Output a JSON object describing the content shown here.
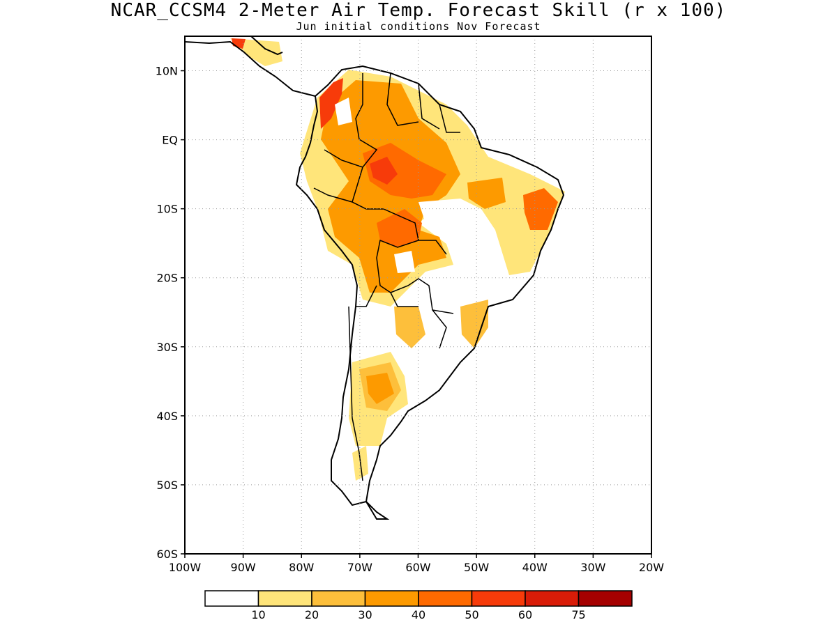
{
  "title": "NCAR_CCSM4 2-Meter Air Temp. Forecast Skill (r x 100)",
  "subtitle": "Jun initial conditions  Nov Forecast",
  "map": {
    "lon_range": [
      -100,
      -20
    ],
    "lat_range": [
      -60,
      15
    ],
    "lat_labels": [
      "10N",
      "EQ",
      "10S",
      "20S",
      "30S",
      "40S",
      "50S",
      "60S"
    ],
    "lat_values": [
      10,
      0,
      -10,
      -20,
      -30,
      -40,
      -50,
      -60
    ],
    "lon_labels": [
      "100W",
      "90W",
      "80W",
      "70W",
      "60W",
      "50W",
      "40W",
      "30W",
      "20W"
    ],
    "lon_values": [
      -100,
      -90,
      -80,
      -70,
      -60,
      -50,
      -40,
      -30,
      -20
    ],
    "gridlines": "dotted"
  },
  "legend": {
    "colors": [
      "#ffffff",
      "#ffe57a",
      "#fdbf3b",
      "#fd9a00",
      "#ff6a00",
      "#f73b0a",
      "#d91c08",
      "#a50000"
    ],
    "labels": [
      "10",
      "20",
      "30",
      "40",
      "50",
      "60",
      "75"
    ]
  }
}
